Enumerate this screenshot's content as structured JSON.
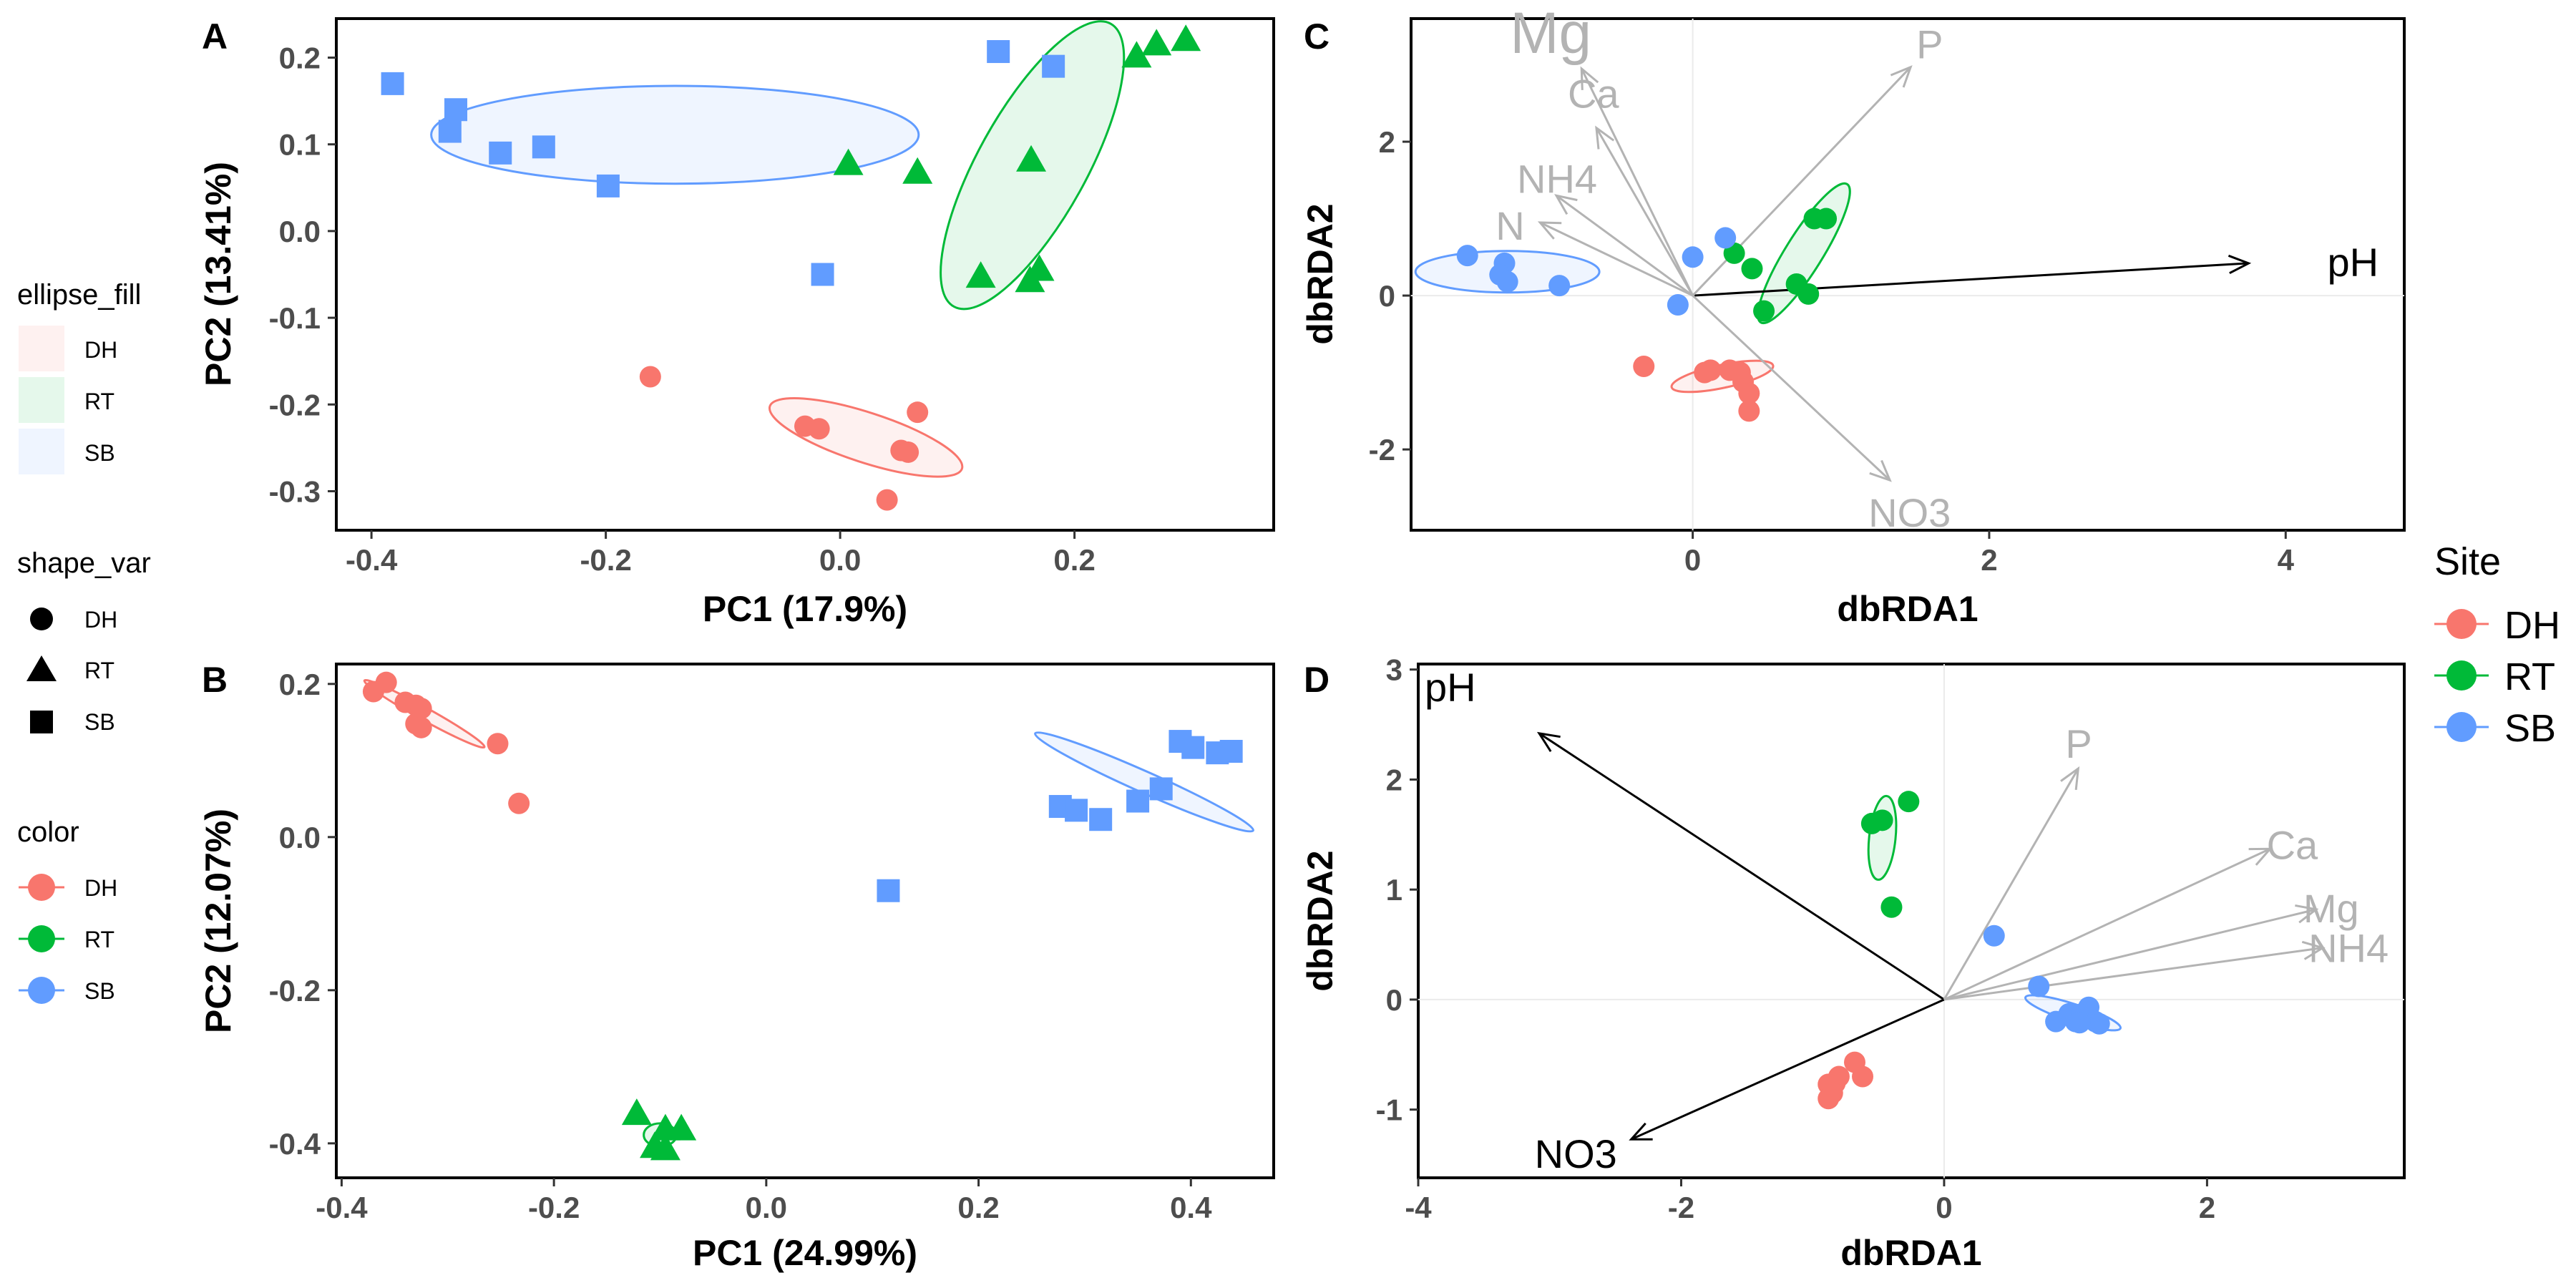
{
  "colors": {
    "DH": "#F8766D",
    "RT": "#00BA38",
    "SB": "#619CFF",
    "env_grey": "#b3b3b3",
    "env_black": "#000000",
    "grid": "#ebebeb"
  },
  "legend": {
    "ellipse_fill": {
      "title": "ellipse_fill",
      "items": [
        "DH",
        "RT",
        "SB"
      ]
    },
    "shape_var": {
      "title": "shape_var",
      "items": [
        "DH",
        "RT",
        "SB"
      ]
    },
    "color": {
      "title": "color",
      "items": [
        "DH",
        "RT",
        "SB"
      ]
    },
    "site": {
      "title": "Site",
      "items": [
        "DH",
        "RT",
        "SB"
      ]
    }
  },
  "chart_data": [
    {
      "panel": "A",
      "type": "scatter",
      "xlabel": "PC1 (17.9%)",
      "ylabel": "PC2 (13.41%)",
      "xlim": [
        -0.43,
        0.37
      ],
      "ylim": [
        -0.345,
        0.245
      ],
      "xticks": [
        -0.4,
        -0.2,
        0.0,
        0.2
      ],
      "yticks": [
        -0.3,
        -0.2,
        -0.1,
        0.0,
        0.1,
        0.2
      ],
      "xtick_labels": [
        "-0.4",
        "-0.2",
        "0.0",
        "0.2"
      ],
      "ytick_labels": [
        "-0.3",
        "-0.2",
        "-0.1",
        "0.0",
        "0.1",
        "0.2"
      ],
      "series": [
        {
          "name": "DH",
          "shape": "circle",
          "points": [
            [
              -0.162,
              -0.168
            ],
            [
              -0.03,
              -0.225
            ],
            [
              -0.018,
              -0.228
            ],
            [
              0.052,
              -0.253
            ],
            [
              0.058,
              -0.255
            ],
            [
              0.066,
              -0.209
            ],
            [
              0.04,
              -0.31
            ]
          ]
        },
        {
          "name": "RT",
          "shape": "triangle",
          "points": [
            [
              0.007,
              0.077
            ],
            [
              0.066,
              0.067
            ],
            [
              0.163,
              0.081
            ],
            [
              0.12,
              -0.053
            ],
            [
              0.162,
              -0.058
            ],
            [
              0.17,
              -0.045
            ],
            [
              0.253,
              0.201
            ],
            [
              0.27,
              0.215
            ],
            [
              0.295,
              0.22
            ]
          ]
        },
        {
          "name": "SB",
          "shape": "square",
          "points": [
            [
              -0.382,
              0.17
            ],
            [
              -0.328,
              0.14
            ],
            [
              -0.333,
              0.115
            ],
            [
              -0.29,
              0.09
            ],
            [
              -0.253,
              0.097
            ],
            [
              -0.198,
              0.052
            ],
            [
              -0.015,
              -0.05
            ],
            [
              0.135,
              0.207
            ],
            [
              0.182,
              0.19
            ]
          ]
        }
      ],
      "ellipses": [
        {
          "name": "DH",
          "cx": 0.022,
          "cy": -0.238,
          "rx": 0.0862,
          "ry": 0.0288,
          "angle": -18
        },
        {
          "name": "RT",
          "cx": 0.164,
          "cy": 0.076,
          "rx": 0.138,
          "ry": 0.0626,
          "angle": 61
        },
        {
          "name": "SB",
          "cx": -0.141,
          "cy": 0.111,
          "rx": 0.208,
          "ry": 0.0564,
          "angle": 0
        }
      ]
    },
    {
      "panel": "B",
      "type": "scatter",
      "xlabel": "PC1 (24.99%)",
      "ylabel": "PC2 (12.07%)",
      "xlim": [
        -0.405,
        0.478
      ],
      "ylim": [
        -0.445,
        0.226
      ],
      "xticks": [
        -0.4,
        -0.2,
        0.0,
        0.2,
        0.4
      ],
      "yticks": [
        -0.4,
        -0.2,
        0.0,
        0.2
      ],
      "xtick_labels": [
        "-0.4",
        "-0.2",
        "0.0",
        "0.2",
        "0.4"
      ],
      "ytick_labels": [
        "-0.4",
        "-0.2",
        "0.0",
        "0.2"
      ],
      "series": [
        {
          "name": "DH",
          "shape": "circle",
          "points": [
            [
              -0.37,
              0.19
            ],
            [
              -0.358,
              0.202
            ],
            [
              -0.34,
              0.176
            ],
            [
              -0.33,
              0.172
            ],
            [
              -0.325,
              0.168
            ],
            [
              -0.33,
              0.148
            ],
            [
              -0.325,
              0.143
            ],
            [
              -0.253,
              0.122
            ],
            [
              -0.233,
              0.044
            ]
          ]
        },
        {
          "name": "RT",
          "shape": "triangle",
          "points": [
            [
              -0.122,
              -0.362
            ],
            [
              -0.095,
              -0.382
            ],
            [
              -0.08,
              -0.382
            ],
            [
              -0.105,
              -0.405
            ],
            [
              -0.095,
              -0.408
            ]
          ]
        },
        {
          "name": "SB",
          "shape": "square",
          "points": [
            [
              0.277,
              0.04
            ],
            [
              0.292,
              0.035
            ],
            [
              0.315,
              0.023
            ],
            [
              0.35,
              0.047
            ],
            [
              0.372,
              0.063
            ],
            [
              0.39,
              0.125
            ],
            [
              0.402,
              0.117
            ],
            [
              0.425,
              0.11
            ],
            [
              0.438,
              0.112
            ],
            [
              0.115,
              -0.07
            ]
          ]
        }
      ],
      "ellipses": [
        {
          "name": "DH",
          "cx": -0.322,
          "cy": 0.161,
          "rx": 0.0646,
          "ry": 0.0081,
          "angle": -29
        },
        {
          "name": "RT",
          "cx": -0.1,
          "cy": -0.389,
          "rx": 0.0154,
          "ry": 0.0151,
          "angle": 0
        },
        {
          "name": "SB",
          "cx": 0.356,
          "cy": 0.072,
          "rx": 0.1124,
          "ry": 0.0138,
          "angle": -24
        }
      ]
    },
    {
      "panel": "C",
      "type": "scatter",
      "xlabel": "dbRDA1",
      "ylabel": "dbRDA2",
      "xlim": [
        -1.9,
        4.8
      ],
      "ylim": [
        -3.05,
        3.6
      ],
      "xticks": [
        0,
        2,
        4
      ],
      "yticks": [
        -2,
        0,
        2
      ],
      "xtick_labels": [
        "0",
        "2",
        "4"
      ],
      "ytick_labels": [
        "-2",
        "0",
        "2"
      ],
      "series": [
        {
          "name": "DH",
          "shape": "circle",
          "points": [
            [
              -0.33,
              -0.92
            ],
            [
              0.08,
              -1.0
            ],
            [
              0.12,
              -0.97
            ],
            [
              0.25,
              -0.97
            ],
            [
              0.32,
              -1.0
            ],
            [
              0.34,
              -1.12
            ],
            [
              0.38,
              -1.27
            ],
            [
              0.38,
              -1.5
            ]
          ]
        },
        {
          "name": "RT",
          "shape": "circle",
          "points": [
            [
              0.28,
              0.55
            ],
            [
              0.4,
              0.35
            ],
            [
              0.48,
              -0.2
            ],
            [
              0.7,
              0.15
            ],
            [
              0.78,
              0.02
            ],
            [
              0.82,
              1.0
            ],
            [
              0.9,
              1.0
            ]
          ]
        },
        {
          "name": "SB",
          "shape": "circle",
          "points": [
            [
              -1.52,
              0.52
            ],
            [
              -1.27,
              0.42
            ],
            [
              -1.3,
              0.27
            ],
            [
              -1.25,
              0.18
            ],
            [
              -0.9,
              0.13
            ],
            [
              -0.1,
              -0.12
            ],
            [
              0.0,
              0.5
            ],
            [
              0.22,
              0.75
            ]
          ]
        }
      ],
      "ellipses": [
        {
          "name": "DH",
          "cx": 0.2,
          "cy": -1.05,
          "rx": 0.35,
          "ry": 0.15,
          "angle": 12
        },
        {
          "name": "RT",
          "cx": 0.75,
          "cy": 0.55,
          "rx": 0.55,
          "ry": 0.24,
          "angle": 58
        },
        {
          "name": "SB",
          "cx": -1.25,
          "cy": 0.31,
          "rx": 0.62,
          "ry": 0.27,
          "angle": 0
        }
      ],
      "vectors": [
        {
          "label": "pH",
          "x": 3.75,
          "y": 0.42,
          "color": "black"
        },
        {
          "label": "P",
          "x": 1.47,
          "y": 2.97,
          "color": "grey"
        },
        {
          "label": "Mg",
          "x": -0.75,
          "y": 2.95,
          "color": "grey"
        },
        {
          "label": "Ca",
          "x": -0.65,
          "y": 2.18,
          "color": "grey"
        },
        {
          "label": "NH4",
          "x": -0.92,
          "y": 1.3,
          "color": "grey"
        },
        {
          "label": "N",
          "x": -1.03,
          "y": 0.95,
          "color": "grey"
        },
        {
          "label": "NO3",
          "x": 1.33,
          "y": -2.4,
          "color": "grey"
        }
      ]
    },
    {
      "panel": "D",
      "type": "scatter",
      "xlabel": "dbRDA1",
      "ylabel": "dbRDA2",
      "xlim": [
        -4.0,
        3.5
      ],
      "ylim": [
        -1.62,
        3.05
      ],
      "xticks": [
        -4,
        -2,
        0,
        2
      ],
      "yticks": [
        -1,
        0,
        1,
        2,
        3
      ],
      "xtick_labels": [
        "-4",
        "-2",
        "0",
        "2"
      ],
      "ytick_labels": [
        "-1",
        "0",
        "1",
        "2",
        "3"
      ],
      "series": [
        {
          "name": "DH",
          "shape": "circle",
          "points": [
            [
              -0.68,
              -0.57
            ],
            [
              -0.62,
              -0.7
            ],
            [
              -0.8,
              -0.7
            ],
            [
              -0.83,
              -0.76
            ],
            [
              -0.88,
              -0.77
            ],
            [
              -0.88,
              -0.9
            ],
            [
              -0.85,
              -0.85
            ]
          ]
        },
        {
          "name": "RT",
          "shape": "circle",
          "points": [
            [
              -0.55,
              1.6
            ],
            [
              -0.47,
              1.63
            ],
            [
              -0.27,
              1.8
            ],
            [
              -0.4,
              0.84
            ]
          ]
        },
        {
          "name": "SB",
          "shape": "circle",
          "points": [
            [
              0.38,
              0.58
            ],
            [
              0.72,
              0.12
            ],
            [
              0.85,
              -0.2
            ],
            [
              0.95,
              -0.13
            ],
            [
              1.0,
              -0.2
            ],
            [
              1.05,
              -0.13
            ],
            [
              1.1,
              -0.07
            ],
            [
              1.15,
              -0.2
            ],
            [
              1.18,
              -0.22
            ],
            [
              1.03,
              -0.21
            ]
          ]
        }
      ],
      "ellipses": [
        {
          "name": "RT",
          "cx": -0.47,
          "cy": 1.47,
          "rx": 0.32,
          "ry": 0.12,
          "angle": 84
        },
        {
          "name": "SB",
          "cx": 0.98,
          "cy": -0.12,
          "rx": 0.38,
          "ry": 0.08,
          "angle": -18
        }
      ],
      "vectors": [
        {
          "label": "pH",
          "x": -3.08,
          "y": 2.42,
          "color": "black"
        },
        {
          "label": "NO3",
          "x": -2.38,
          "y": -1.27,
          "color": "black"
        },
        {
          "label": "P",
          "x": 1.02,
          "y": 2.1,
          "color": "grey"
        },
        {
          "label": "Ca",
          "x": 2.48,
          "y": 1.37,
          "color": "grey"
        },
        {
          "label": "Mg",
          "x": 2.83,
          "y": 0.82,
          "color": "grey"
        },
        {
          "label": "NH4",
          "x": 2.88,
          "y": 0.47,
          "color": "grey"
        }
      ]
    }
  ]
}
